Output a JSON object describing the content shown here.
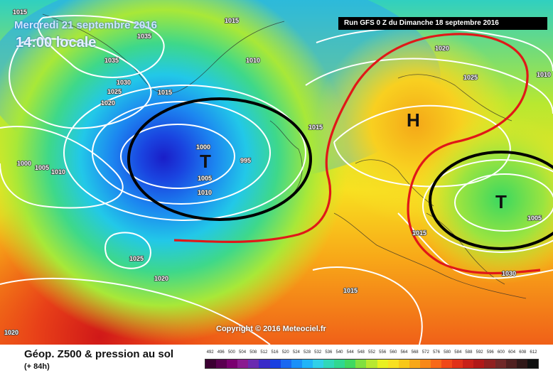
{
  "header": {
    "date_text": "Mercredi 21 septembre 2016",
    "time_text": "14:00 locale",
    "run_text": "Run GFS 0 Z du Dimanche 18 septembre 2016"
  },
  "footer": {
    "product_title": "Géop. Z500 & pression au sol",
    "forecast_hour": "(+ 84h)",
    "copyright": "Copyright © 2016 Meteociel.fr"
  },
  "legend": {
    "values": [
      "492",
      "496",
      "500",
      "504",
      "508",
      "512",
      "516",
      "520",
      "524",
      "528",
      "532",
      "536",
      "540",
      "544",
      "548",
      "552",
      "556",
      "560",
      "564",
      "568",
      "572",
      "576",
      "580",
      "584",
      "588",
      "592",
      "596",
      "600",
      "604",
      "608",
      "612"
    ],
    "colors": [
      "#3c0032",
      "#5a0050",
      "#7a0070",
      "#8a1a90",
      "#6a2ab0",
      "#3a2ac8",
      "#1a40e0",
      "#1a68f0",
      "#1a90f8",
      "#20b4f8",
      "#30d0e8",
      "#30d8b8",
      "#30d890",
      "#40d860",
      "#80e040",
      "#b8e830",
      "#e8f020",
      "#f8e020",
      "#f8c818",
      "#f8a818",
      "#f88818",
      "#f86818",
      "#f04818",
      "#e03018",
      "#c82018",
      "#b01818",
      "#902020",
      "#702828",
      "#502020",
      "#301818",
      "#101010"
    ]
  },
  "map": {
    "systems": [
      {
        "label": "T",
        "type": "low"
      },
      {
        "label": "H",
        "type": "high"
      },
      {
        "label": "T",
        "type": "low"
      }
    ],
    "isobar_labels": [
      "1015",
      "1015",
      "1035",
      "1035",
      "1030",
      "1025",
      "1020",
      "1015",
      "1010",
      "1020",
      "1025",
      "1000",
      "995",
      "1005",
      "1010",
      "1015",
      "1000",
      "1005",
      "1010",
      "1025",
      "1020",
      "1020",
      "1015",
      "1015",
      "1005",
      "1030",
      "1010"
    ]
  }
}
